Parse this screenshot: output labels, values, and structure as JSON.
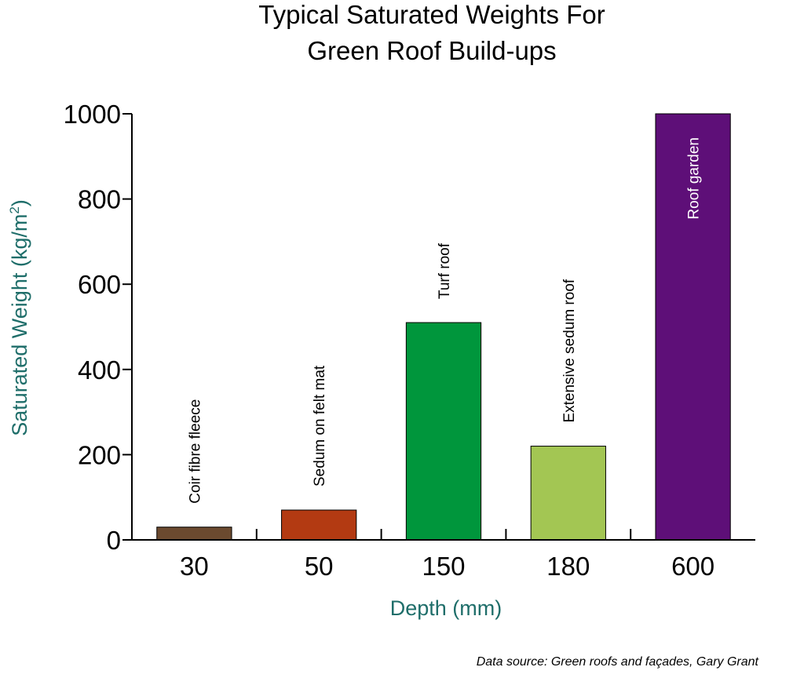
{
  "chart_data": {
    "type": "bar",
    "title": [
      "Typical Saturated Weights For",
      "Green Roof Build-ups"
    ],
    "xlabel": "Depth (mm)",
    "ylabel_main": "Saturated Weight (kg/m",
    "ylabel_sup": "2",
    "ylabel_end": ")",
    "categories": [
      "30",
      "50",
      "150",
      "180",
      "600"
    ],
    "values": [
      30,
      70,
      510,
      220,
      1000
    ],
    "bar_labels": [
      "Coir fibre fleece",
      "Sedum on felt mat",
      "Turf roof",
      "Extensive sedum roof",
      "Roof garden"
    ],
    "label_colors": [
      "#000000",
      "#000000",
      "#000000",
      "#000000",
      "#ffffff"
    ],
    "colors": [
      "#6b4a2f",
      "#b33a12",
      "#00963c",
      "#a3c653",
      "#5e0f78"
    ],
    "yticks": [
      0,
      200,
      400,
      600,
      800,
      1000
    ],
    "ylim": [
      0,
      1000
    ],
    "axis_title_color": "#1f6e6a",
    "source": "Data source: Green roofs and façades, Gary Grant"
  }
}
